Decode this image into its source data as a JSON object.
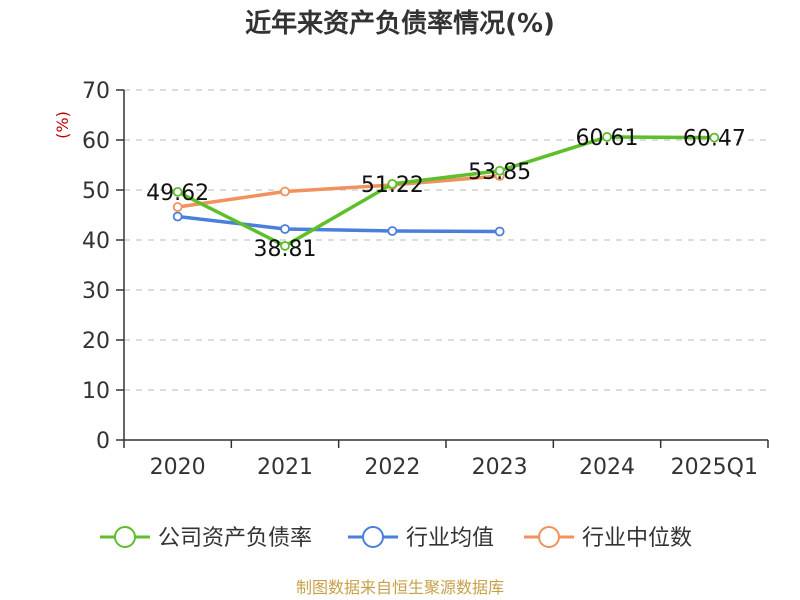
{
  "chart_data": {
    "type": "line",
    "title": "近年来资产负债率情况(%)",
    "ylabel": "(%)",
    "xlabel": "",
    "categories": [
      "2020",
      "2021",
      "2022",
      "2023",
      "2024",
      "2025Q1"
    ],
    "ylim": [
      0,
      70
    ],
    "yticks": [
      0,
      10,
      20,
      30,
      40,
      50,
      60,
      70
    ],
    "grid": true,
    "legend_position": "bottom",
    "series": [
      {
        "name": "公司资产负债率",
        "color": "#5dbf2a",
        "values": [
          49.62,
          38.81,
          51.22,
          53.85,
          60.61,
          60.47
        ],
        "labels": [
          "49.62",
          "38.81",
          "51.22",
          "53.85",
          "60.61",
          "60.47"
        ]
      },
      {
        "name": "行业均值",
        "color": "#4a7fdb",
        "values": [
          44.7,
          42.2,
          41.8,
          41.7,
          null,
          null
        ]
      },
      {
        "name": "行业中位数",
        "color": "#f0915e",
        "values": [
          46.6,
          49.7,
          51.0,
          52.8,
          null,
          null
        ]
      }
    ]
  },
  "source": "制图数据来自恒生聚源数据库"
}
